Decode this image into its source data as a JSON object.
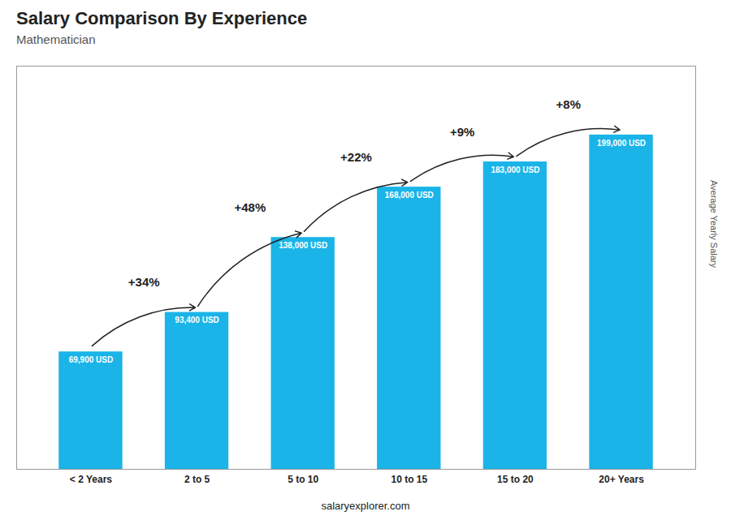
{
  "chart_data": {
    "type": "bar",
    "title": "Salary Comparison By Experience",
    "subtitle": "Mathematician",
    "categories": [
      "< 2 Years",
      "2 to 5",
      "5 to 10",
      "10 to 15",
      "15 to 20",
      "20+ Years"
    ],
    "values": [
      69900,
      93400,
      138000,
      168000,
      183000,
      199000
    ],
    "value_labels": [
      "69,900 USD",
      "93,400 USD",
      "138,000 USD",
      "168,000 USD",
      "183,000 USD",
      "199,000 USD"
    ],
    "data_labels": true,
    "color": "#1ab4e8",
    "ylim": [
      0,
      240000
    ],
    "ylabel": "Average Yearly Salary",
    "tick_labels": "x",
    "grid": false,
    "annotations": [
      "+34%",
      "+48%",
      "+22%",
      "+9%",
      "+8%"
    ],
    "caption": "salaryexplorer.com"
  }
}
